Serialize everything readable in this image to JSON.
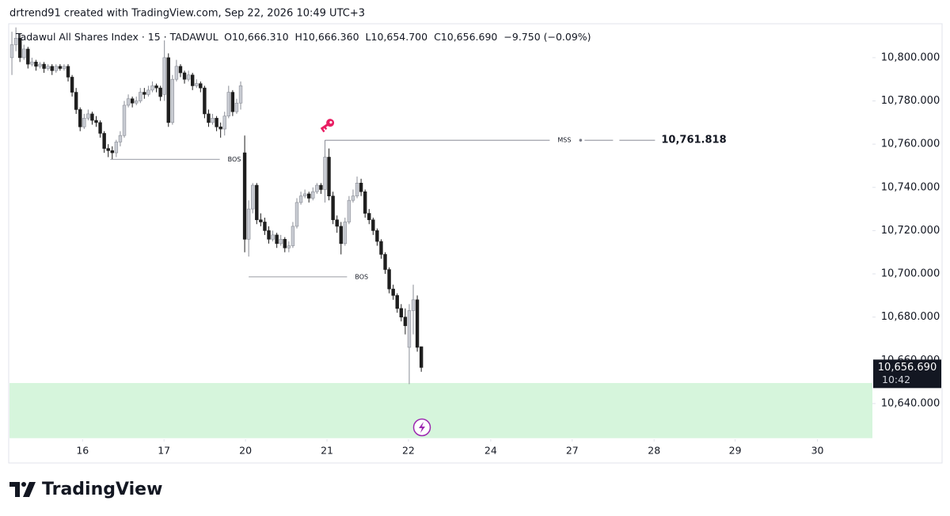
{
  "header": {
    "text": "drtrend91 created with TradingView.com, Sep 22, 2026 10:49 UTC+3"
  },
  "footer": {
    "brand": "TradingView"
  },
  "chart_data": {
    "type": "candlestick",
    "title": "Tadawul All Shares Index · 15 · TADAWUL",
    "ohlc_legend": [
      "O10,666.310",
      "H10,666.360",
      "L10,654.700",
      "C10,656.690",
      "−9.750 (−0.09%)"
    ],
    "up_color": "#c9ccd3",
    "down_color": "#1e1e1e",
    "x": [
      0,
      1,
      2,
      3,
      4,
      5,
      6,
      7,
      8,
      9,
      10,
      11,
      12,
      13,
      14,
      15,
      16,
      17,
      18,
      19,
      20,
      21,
      22,
      23,
      24,
      25,
      26,
      27,
      28,
      29,
      30,
      31,
      32,
      33,
      34,
      35,
      36,
      37,
      38,
      39,
      40,
      41,
      42,
      43,
      44,
      45,
      46,
      47,
      48,
      49,
      50,
      51,
      52,
      53,
      54,
      55,
      56,
      57,
      58,
      59,
      60,
      61,
      62,
      63,
      64,
      65,
      66,
      67,
      68,
      69,
      70,
      71,
      72,
      73,
      74,
      75,
      76,
      77,
      78,
      79,
      80,
      81,
      82,
      83,
      84,
      85,
      86,
      87,
      88,
      89,
      90,
      91,
      92,
      93,
      94,
      95,
      96,
      97,
      98,
      99,
      100,
      101,
      102
    ],
    "open": [
      10800,
      10806,
      10809,
      10800,
      10804,
      10797,
      10798,
      10796,
      10797,
      10795,
      10796,
      10794,
      10796,
      10795,
      10796,
      10791,
      10784,
      10776,
      10768,
      10772,
      10774,
      10771,
      10770,
      10765,
      10758,
      10757,
      10756,
      10761,
      10764,
      10778,
      10781,
      10779,
      10780,
      10784,
      10783,
      10785,
      10787,
      10786,
      10783,
      10800,
      10770,
      10790,
      10796,
      10793,
      10790,
      10792,
      10787,
      10788,
      10786,
      10774,
      10770,
      10772,
      10768,
      10767,
      10773,
      10784,
      10775,
      10779,
      10756,
      10716,
      10730,
      10741,
      10725,
      10724,
      10720,
      10716,
      10718,
      10714,
      10716,
      10712,
      10713,
      10722,
      10733,
      10736,
      10737,
      10735,
      10738,
      10741,
      10739,
      10754,
      10736,
      10725,
      10722,
      10714,
      10724,
      10734,
      10736,
      10742,
      10738,
      10728,
      10725,
      10720,
      10715,
      10709,
      10702,
      10693,
      10690,
      10684,
      10680,
      10666,
      10683,
      10688,
      10666.31
    ],
    "high": [
      10812,
      10814,
      10811,
      10806,
      10805,
      10800,
      10799,
      10798,
      10798,
      10797,
      10797,
      10797,
      10797,
      10797,
      10797,
      10792,
      10786,
      10777,
      10774,
      10776,
      10775,
      10773,
      10771,
      10766,
      10760,
      10759,
      10762,
      10766,
      10780,
      10783,
      10782,
      10782,
      10786,
      10786,
      10787,
      10789,
      10788,
      10787,
      10808,
      10802,
      10792,
      10799,
      10797,
      10794,
      10794,
      10793,
      10790,
      10789,
      10787,
      10776,
      10774,
      10773,
      10770,
      10775,
      10787,
      10785,
      10781,
      10789,
      10764,
      10734,
      10742,
      10742,
      10728,
      10726,
      10722,
      10720,
      10719,
      10718,
      10717,
      10715,
      10724,
      10735,
      10738,
      10739,
      10738,
      10740,
      10742,
      10742,
      10761.818,
      10758,
      10738,
      10727,
      10724,
      10726,
      10736,
      10739,
      10745,
      10744,
      10739,
      10730,
      10726,
      10721,
      10716,
      10710,
      10703,
      10695,
      10691,
      10686,
      10684,
      10686,
      10695,
      10690,
      10666.36
    ],
    "low": [
      10792,
      10803,
      10798,
      10799,
      10795,
      10796,
      10794,
      10795,
      10793,
      10794,
      10792,
      10793,
      10794,
      10794,
      10789,
      10782,
      10774,
      10766,
      10767,
      10771,
      10769,
      10768,
      10763,
      10756,
      10754,
      10753,
      10754,
      10759,
      10763,
      10777,
      10777,
      10778,
      10779,
      10781,
      10782,
      10784,
      10784,
      10780,
      10780,
      10768,
      10769,
      10789,
      10791,
      10788,
      10789,
      10785,
      10786,
      10784,
      10772,
      10768,
      10769,
      10766,
      10763,
      10764,
      10772,
      10773,
      10774,
      10776,
      10710,
      10708,
      10728,
      10723,
      10722,
      10718,
      10714,
      10715,
      10712,
      10713,
      10710,
      10710,
      10712,
      10721,
      10732,
      10735,
      10733,
      10734,
      10737,
      10737,
      10733,
      10734,
      10723,
      10719,
      10709,
      10713,
      10723,
      10733,
      10735,
      10736,
      10726,
      10723,
      10718,
      10713,
      10707,
      10700,
      10691,
      10688,
      10682,
      10678,
      10672,
      10649,
      10672,
      10664,
      10654.7
    ],
    "close": [
      10806,
      10809,
      10800,
      10804,
      10797,
      10798,
      10796,
      10797,
      10795,
      10796,
      10794,
      10796,
      10795,
      10796,
      10791,
      10784,
      10776,
      10768,
      10772,
      10774,
      10771,
      10770,
      10765,
      10758,
      10757,
      10756,
      10761,
      10764,
      10778,
      10781,
      10779,
      10780,
      10784,
      10783,
      10785,
      10787,
      10786,
      10782,
      10800,
      10770,
      10790,
      10796,
      10793,
      10790,
      10792,
      10787,
      10788,
      10786,
      10774,
      10770,
      10772,
      10768,
      10767,
      10773,
      10784,
      10775,
      10779,
      10787,
      10716,
      10730,
      10741,
      10725,
      10724,
      10720,
      10716,
      10718,
      10714,
      10716,
      10712,
      10713,
      10722,
      10733,
      10736,
      10737,
      10735,
      10738,
      10741,
      10739,
      10754,
      10736,
      10725,
      10722,
      10714,
      10724,
      10734,
      10736,
      10742,
      10738,
      10728,
      10725,
      10720,
      10715,
      10709,
      10702,
      10693,
      10690,
      10684,
      10680,
      10676,
      10683,
      10688,
      10666,
      10656.69
    ],
    "xlim": [
      -0.6,
      214.4
    ],
    "xticks": [
      {
        "value": 17.6,
        "label": "16"
      },
      {
        "value": 37.9,
        "label": "17"
      },
      {
        "value": 58.2,
        "label": "20"
      },
      {
        "value": 78.5,
        "label": "21"
      },
      {
        "value": 98.8,
        "label": "22"
      },
      {
        "value": 119.3,
        "label": "24"
      },
      {
        "value": 139.6,
        "label": "27"
      },
      {
        "value": 160,
        "label": "28"
      },
      {
        "value": 180.2,
        "label": "29"
      },
      {
        "value": 200.7,
        "label": "30"
      }
    ],
    "ylim": [
      10623.5,
      10815.7
    ],
    "yticks": [
      {
        "value": 10640,
        "label": "10,640.000"
      },
      {
        "value": 10660,
        "label": "10,660.000"
      },
      {
        "value": 10680,
        "label": "10,680.000"
      },
      {
        "value": 10700,
        "label": "10,700.000"
      },
      {
        "value": 10720,
        "label": "10,720.000"
      },
      {
        "value": 10740,
        "label": "10,740.000"
      },
      {
        "value": 10760,
        "label": "10,760.000"
      },
      {
        "value": 10780,
        "label": "10,780.000"
      },
      {
        "value": 10800,
        "label": "10,800.000"
      }
    ],
    "annotations": [
      {
        "label": "BOS",
        "y": 10753,
        "x_start": 24.5,
        "x_end": 51.8
      },
      {
        "label": "BOS",
        "y": 10698.6,
        "x_start": 59,
        "x_end": 83.5
      },
      {
        "label": "MSS",
        "y": 10761.818,
        "x_start": 78,
        "x_end": 134,
        "value_label": "10,761.818"
      }
    ],
    "zone": {
      "low": 10624,
      "high": 10649.5,
      "color": "#d6f5dc"
    },
    "last_price": {
      "value": 10656.69,
      "label": "10,656.690",
      "time": "10:42"
    }
  }
}
